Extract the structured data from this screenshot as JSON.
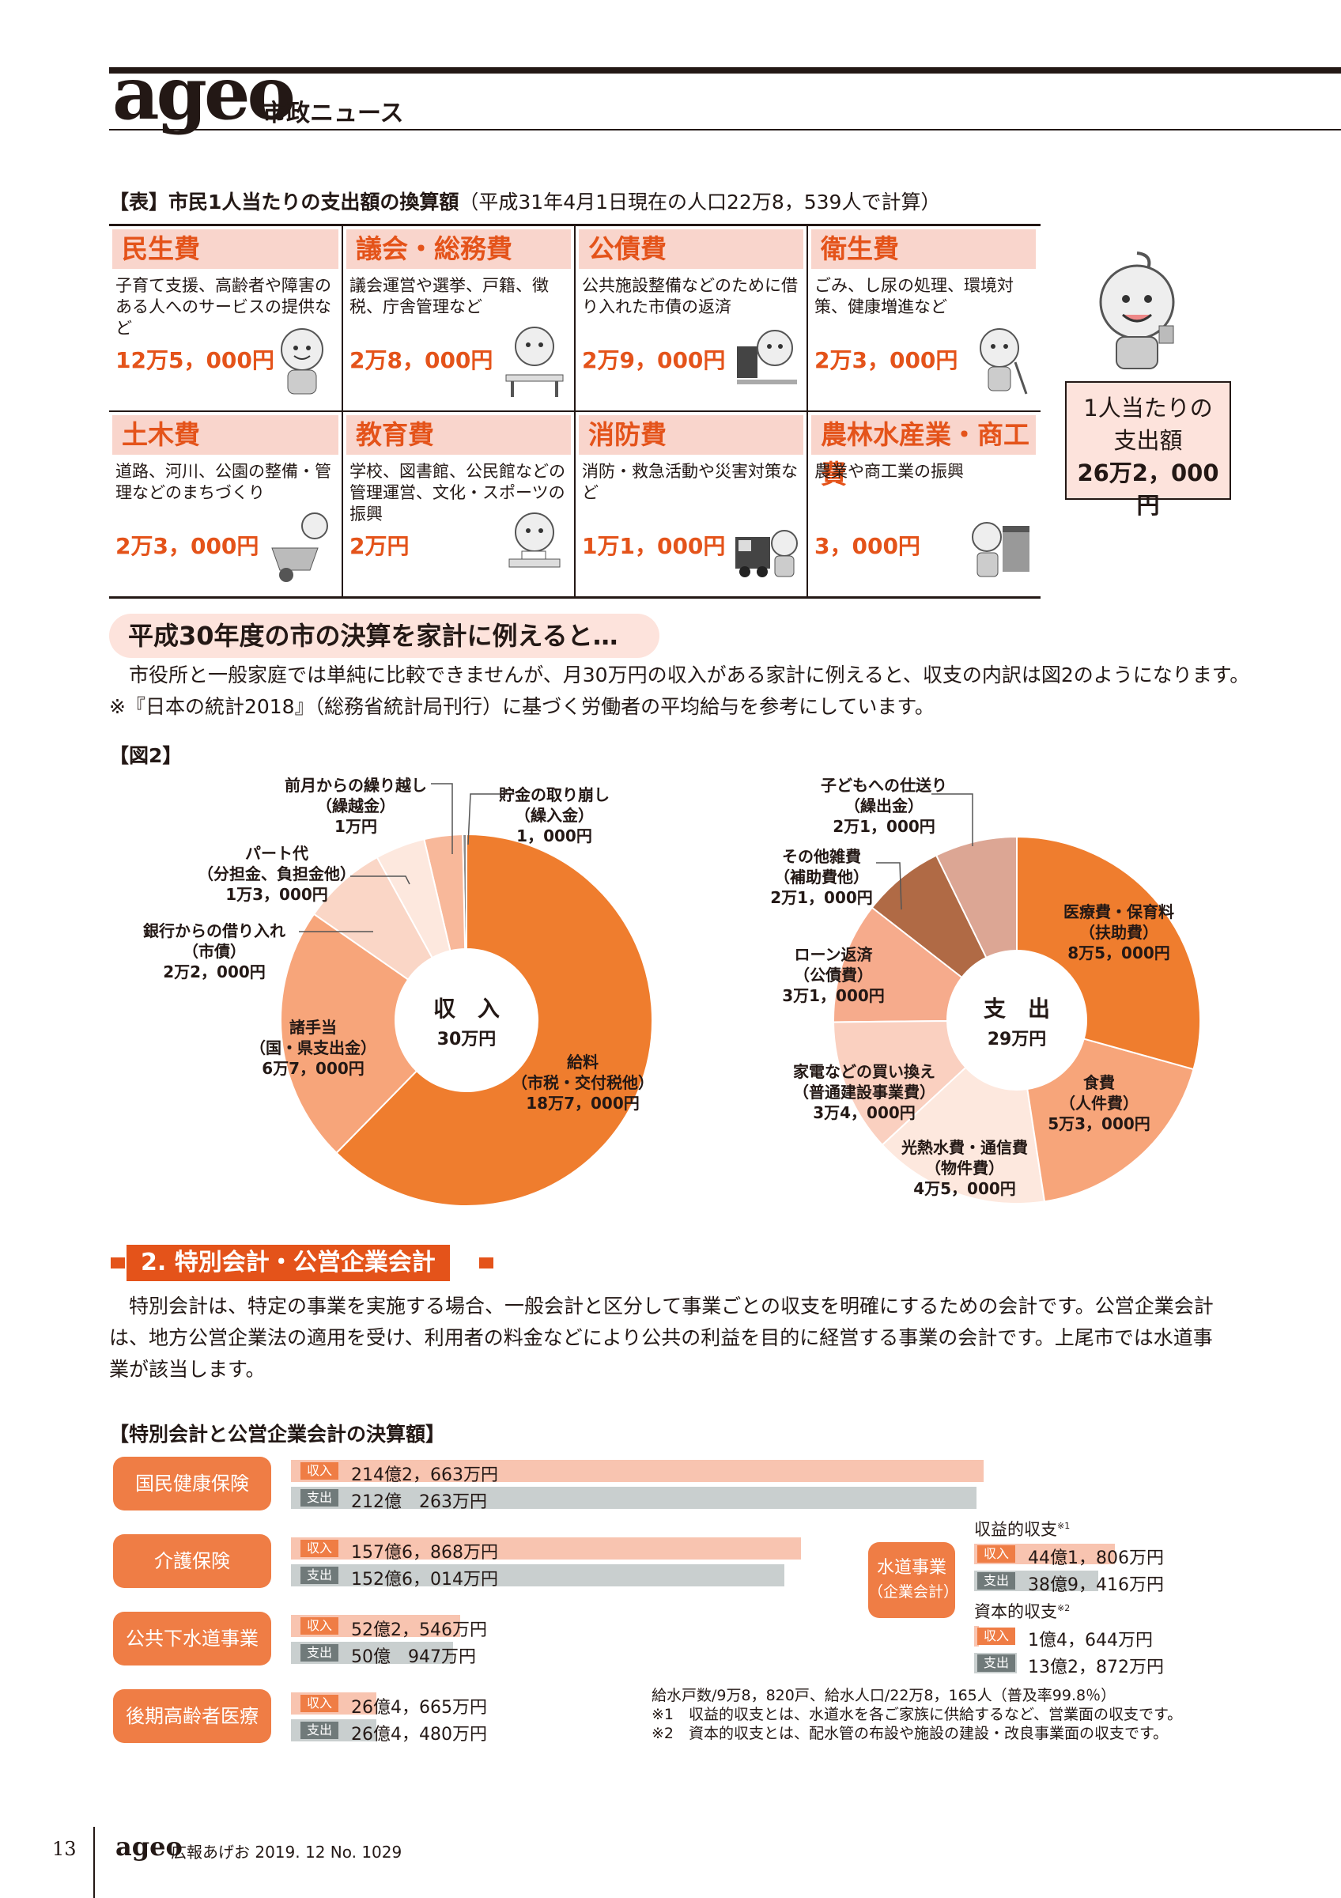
{
  "header": {
    "logo": "ageo",
    "subtitle": "市政ニュース"
  },
  "table": {
    "caption_bold": "【表】市民1人当たりの支出額の換算額",
    "caption_note": "（平成31年4月1日現在の人口22万8，539人で計算）",
    "rows": [
      [
        {
          "title": "民生費",
          "desc": "子育て支援、高齢者や障害のある人へのサービスの提供など",
          "amount": "12万5，000円"
        },
        {
          "title": "議会・総務費",
          "desc": "議会運営や選挙、戸籍、徴税、庁舎管理など",
          "amount": "2万8，000円"
        },
        {
          "title": "公債費",
          "desc": "公共施設整備などのために借り入れた市債の返済",
          "amount": "2万9，000円"
        },
        {
          "title": "衛生費",
          "desc": "ごみ、し尿の処理、環境対策、健康増進など",
          "amount": "2万3，000円"
        }
      ],
      [
        {
          "title": "土木費",
          "desc": "道路、河川、公園の整備・管理などのまちづくり",
          "amount": "2万3，000円"
        },
        {
          "title": "教育費",
          "desc": "学校、図書館、公民館などの管理運営、文化・スポーツの振興",
          "amount": "2万円"
        },
        {
          "title": "消防費",
          "desc": "消防・救急活動や災害対策など",
          "amount": "1万1，000円"
        },
        {
          "title": "農林水産業・商工費",
          "desc": "農業や商工業の振興",
          "amount": "3，000円"
        }
      ]
    ],
    "per_person": {
      "line1": "1人当たりの",
      "line2": "支出額",
      "line3": "26万2，000円"
    }
  },
  "household": {
    "heading": "平成30年度の市の決算を家計に例えると…",
    "para1": "市役所と一般家庭では単純に比較できませんが、月30万円の収入がある家計に例えると、収支の内訳は図2のようになります。　※『日本の統計2018』（総務省統計局刊行）に基づく労働者の平均給与を参考にしています。",
    "fig_label": "【図2】"
  },
  "chart_data": [
    {
      "type": "pie",
      "title": "収　入",
      "subtitle": "30万円",
      "series": [
        {
          "name": "給料（市税・交付税他）",
          "value": 187000,
          "label": "18万7，000円",
          "color": "#ef7d2e"
        },
        {
          "name": "諸手当（国・県支出金）",
          "value": 67000,
          "label": "6万7，000円",
          "color": "#f7a57a"
        },
        {
          "name": "銀行からの借り入れ（市債）",
          "value": 22000,
          "label": "2万2，000円",
          "color": "#fad6c6"
        },
        {
          "name": "パート代（分担金、負担金他）",
          "value": 13000,
          "label": "1万3，000円",
          "color": "#fde8de"
        },
        {
          "name": "前月からの繰り越し（繰越金）",
          "value": 10000,
          "label": "1万円",
          "color": "#f8b89a"
        },
        {
          "name": "貯金の取り崩し（繰入金）",
          "value": 1000,
          "label": "1，000円",
          "color": "#8a8a8a"
        }
      ]
    },
    {
      "type": "pie",
      "title": "支　出",
      "subtitle": "29万円",
      "series": [
        {
          "name": "医療費・保育料（扶助費）",
          "value": 85000,
          "label": "8万5，000円",
          "color": "#ef7d2e"
        },
        {
          "name": "食費（人件費）",
          "value": 53000,
          "label": "5万3，000円",
          "color": "#f7a57a"
        },
        {
          "name": "光熱水費・通信費（物件費）",
          "value": 45000,
          "label": "4万5，000円",
          "color": "#fde8de"
        },
        {
          "name": "家電などの買い換え（普通建設事業費）",
          "value": 34000,
          "label": "3万4，000円",
          "color": "#fad0c0"
        },
        {
          "name": "ローン返済（公債費）",
          "value": 31000,
          "label": "3万1，000円",
          "color": "#f6ab8c"
        },
        {
          "name": "その他雑費（補助費他）",
          "value": 21000,
          "label": "2万1，000円",
          "color": "#b06a45"
        },
        {
          "name": "子どもへの仕送り（繰出金）",
          "value": 21000,
          "label": "2万1，000円",
          "color": "#dca694"
        }
      ]
    },
    {
      "type": "bar",
      "title": "【特別会計と公営企業会計の決算額】",
      "categories": [
        "国民健康保険",
        "介護保険",
        "公共下水道事業",
        "後期高齢者医療"
      ],
      "series": [
        {
          "name": "収入",
          "values": [
            2142663,
            1576868,
            522546,
            264665
          ],
          "labels": [
            "214億2，663万円",
            "157億6，868万円",
            "52億2，546万円",
            "26億4，665万円"
          ]
        },
        {
          "name": "支出",
          "values": [
            2120263,
            1526014,
            500947,
            264480
          ],
          "labels": [
            "212億　263万円",
            "152億6，014万円",
            "50億　947万円",
            "26億4，480万円"
          ]
        }
      ],
      "unit": "万円"
    }
  ],
  "labels_in": {
    "carry": [
      "前月からの繰り越し",
      "（繰越金）",
      "1万円"
    ],
    "savings": [
      "貯金の取り崩し",
      "（繰入金）",
      "1，000円"
    ],
    "part": [
      "パート代",
      "（分担金、負担金他）",
      "1万3，000円"
    ],
    "bank": [
      "銀行からの借り入れ",
      "（市債）",
      "2万2，000円"
    ],
    "allow": [
      "諸手当",
      "（国・県支出金）",
      "6万7，000円"
    ],
    "salary": [
      "給料",
      "（市税・交付税他）",
      "18万7，000円"
    ]
  },
  "labels_out": {
    "child": [
      "子どもへの仕送り",
      "（繰出金）",
      "2万1，000円"
    ],
    "misc": [
      "その他雑費",
      "（補助費他）",
      "2万1，000円"
    ],
    "loan": [
      "ローン返済",
      "（公債費）",
      "3万1，000円"
    ],
    "appl": [
      "家電などの買い換え",
      "（普通建設事業費）",
      "3万4，000円"
    ],
    "util": [
      "光熱水費・通信費",
      "（物件費）",
      "4万5，000円"
    ],
    "food": [
      "食費",
      "（人件費）",
      "5万3，000円"
    ],
    "med": [
      "医療費・保育料",
      "（扶助費）",
      "8万5，000円"
    ]
  },
  "special": {
    "heading": "2. 特別会計・公営企業会計",
    "para": "特別会計は、特定の事業を実施する場合、一般会計と区分して事業ごとの収支を明確にするための会計です。公営企業会計は、地方公営企業法の適用を受け、利用者の料金などにより公共の利益を目的に経営する事業の会計です。上尾市では水道事業が該当します。",
    "tag_in": "収入",
    "tag_out": "支出",
    "water": {
      "name1": "水道事業",
      "name2": "（企業会計）",
      "rev_title": "収益的収支",
      "rev_mark": "※1",
      "rev_in": "44億1，806万円",
      "rev_out": "38億9，416万円",
      "cap_title": "資本的収支",
      "cap_mark": "※2",
      "cap_in": "1億4，644万円",
      "cap_out": "13億2，872万円"
    },
    "notes": [
      "給水戸数/9万8，820戸、給水人口/22万8，165人（普及率99.8％）",
      "※1　収益的収支とは、水道水を各ご家族に供給するなど、営業面の収支です。",
      "※2　資本的収支とは、配水管の布設や施設の建設・改良事業面の収支です。"
    ]
  },
  "footer": {
    "page": "13",
    "logo": "ageo",
    "text": "広報あげお  2019. 12 No. 1029"
  }
}
